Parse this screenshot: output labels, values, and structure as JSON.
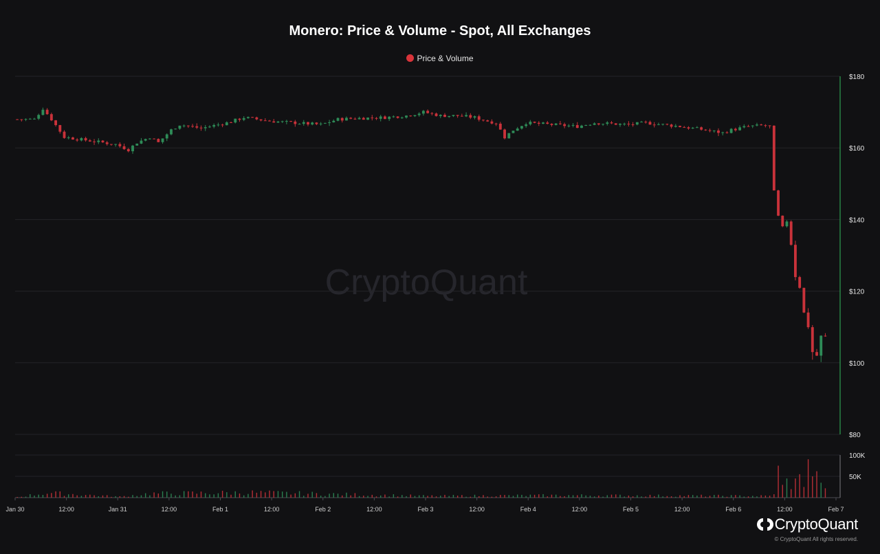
{
  "page": {
    "title": "Monero: Price & Volume - Spot, All Exchanges"
  },
  "legend": {
    "label": "Price & Volume",
    "color": "#d9343a"
  },
  "watermark": "CryptoQuant",
  "branding": {
    "name": "CryptoQuant",
    "copyright": "© CryptoQuant All rights reserved."
  },
  "colors": {
    "up": "#2e8b57",
    "down": "#c9323a",
    "axis_line": "#2ea052",
    "grid": "#242428",
    "background": "#111113"
  },
  "chart_data": {
    "type": "candlestick",
    "title": "Monero: Price & Volume - Spot, All Exchanges",
    "legend": [
      "Price & Volume"
    ],
    "legend_position": "top-center",
    "grid": true,
    "interval_hours": 1,
    "price_axis": {
      "range": [
        80,
        180
      ],
      "ticks": [
        80,
        100,
        120,
        140,
        160,
        180
      ],
      "tick_labels": [
        "$80",
        "$100",
        "$120",
        "$140",
        "$160",
        "$180"
      ],
      "position": "right"
    },
    "volume_axis": {
      "range": [
        0,
        100000
      ],
      "ticks": [
        50000,
        100000
      ],
      "tick_labels": [
        "50K",
        "100K"
      ],
      "position": "right"
    },
    "x_axis": {
      "range": [
        "Jan 30 00:00",
        "Feb 7 00:00"
      ],
      "ticks": [
        "Jan 30 00:00",
        "Jan 30 12:00",
        "Jan 31 00:00",
        "Jan 31 12:00",
        "Feb 1 00:00",
        "Feb 1 12:00",
        "Feb 2 00:00",
        "Feb 2 12:00",
        "Feb 3 00:00",
        "Feb 3 12:00",
        "Feb 4 00:00",
        "Feb 4 12:00",
        "Feb 5 00:00",
        "Feb 5 12:00",
        "Feb 6 00:00",
        "Feb 6 12:00",
        "Feb 7 00:00"
      ],
      "tick_labels": [
        "Jan 30",
        "12:00",
        "Jan 31",
        "12:00",
        "Feb 1",
        "12:00",
        "Feb 2",
        "12:00",
        "Feb 3",
        "12:00",
        "Feb 4",
        "12:00",
        "Feb 5",
        "12:00",
        "Feb 6",
        "12:00",
        "Feb 7"
      ]
    },
    "anchors": [
      [
        "Jan 30 00:00",
        168
      ],
      [
        "Jan 30 05:00",
        168
      ],
      [
        "Jan 30 07:00",
        171
      ],
      [
        "Jan 30 09:00",
        168
      ],
      [
        "Jan 30 12:00",
        163
      ],
      [
        "Jan 30 18:00",
        162
      ],
      [
        "Jan 31 00:00",
        161
      ],
      [
        "Jan 31 03:00",
        159.5
      ],
      [
        "Jan 31 05:00",
        161.5
      ],
      [
        "Jan 31 08:00",
        163
      ],
      [
        "Jan 31 10:00",
        161.5
      ],
      [
        "Jan 31 13:00",
        165
      ],
      [
        "Jan 31 15:00",
        166.5
      ],
      [
        "Jan 31 20:00",
        165.5
      ],
      [
        "Feb 1 02:00",
        167
      ],
      [
        "Feb 1 06:00",
        168.5
      ],
      [
        "Feb 1 12:00",
        167.5
      ],
      [
        "Feb 1 18:00",
        167
      ],
      [
        "Feb 2 00:00",
        166.5
      ],
      [
        "Feb 2 04:00",
        168
      ],
      [
        "Feb 2 09:00",
        168.3
      ],
      [
        "Feb 2 15:00",
        168.5
      ],
      [
        "Feb 2 20:00",
        169
      ],
      [
        "Feb 3 00:00",
        170
      ],
      [
        "Feb 3 04:00",
        169
      ],
      [
        "Feb 3 08:00",
        169
      ],
      [
        "Feb 3 12:00",
        168.5
      ],
      [
        "Feb 3 15:00",
        167.5
      ],
      [
        "Feb 3 17:00",
        167
      ],
      [
        "Feb 3 19:00",
        163
      ],
      [
        "Feb 3 21:00",
        165
      ],
      [
        "Feb 4 00:00",
        167
      ],
      [
        "Feb 4 06:00",
        166.5
      ],
      [
        "Feb 4 12:00",
        166
      ],
      [
        "Feb 4 16:00",
        167
      ],
      [
        "Feb 5 00:00",
        166.5
      ],
      [
        "Feb 5 04:00",
        167
      ],
      [
        "Feb 5 08:00",
        166.5
      ],
      [
        "Feb 5 12:00",
        166
      ],
      [
        "Feb 5 18:00",
        165
      ],
      [
        "Feb 5 22:00",
        164.2
      ],
      [
        "Feb 6 00:00",
        165
      ],
      [
        "Feb 6 04:00",
        166
      ],
      [
        "Feb 6 08:00",
        166.3
      ],
      [
        "Feb 6 09:00",
        166
      ],
      [
        "Feb 6 10:00",
        148
      ],
      [
        "Feb 6 11:00",
        141
      ],
      [
        "Feb 6 12:00",
        138
      ],
      [
        "Feb 6 13:00",
        139.5
      ],
      [
        "Feb 6 14:00",
        133
      ],
      [
        "Feb 6 15:00",
        124
      ],
      [
        "Feb 6 16:00",
        121
      ],
      [
        "Feb 6 17:00",
        114
      ],
      [
        "Feb 6 18:00",
        110
      ],
      [
        "Feb 6 19:00",
        103
      ],
      [
        "Feb 6 20:00",
        102
      ],
      [
        "Feb 6 21:00",
        107.5
      ]
    ],
    "volume_anchors": [
      [
        "Jan 30 00:00",
        2000
      ],
      [
        "Jan 30 07:00",
        14000
      ],
      [
        "Jan 31 00:00",
        3000
      ],
      [
        "Jan 31 07:00",
        12000
      ],
      [
        "Feb 1 07:00",
        15000
      ],
      [
        "Feb 3 00:00",
        5000
      ],
      [
        "Feb 4 07:00",
        7000
      ],
      [
        "Feb 6 08:00",
        5000
      ],
      [
        "Feb 6 09:00",
        8000
      ],
      [
        "Feb 6 10:00",
        75000
      ],
      [
        "Feb 6 11:00",
        30000
      ],
      [
        "Feb 6 12:00",
        45000
      ],
      [
        "Feb 6 13:00",
        20000
      ],
      [
        "Feb 6 14:00",
        45000
      ],
      [
        "Feb 6 15:00",
        55000
      ],
      [
        "Feb 6 16:00",
        25000
      ],
      [
        "Feb 6 17:00",
        90000
      ],
      [
        "Feb 6 18:00",
        50000
      ],
      [
        "Feb 6 19:00",
        62000
      ],
      [
        "Feb 6 20:00",
        35000
      ],
      [
        "Feb 6 21:00",
        22000
      ]
    ],
    "volume_ylim": [
      0,
      100000
    ]
  }
}
